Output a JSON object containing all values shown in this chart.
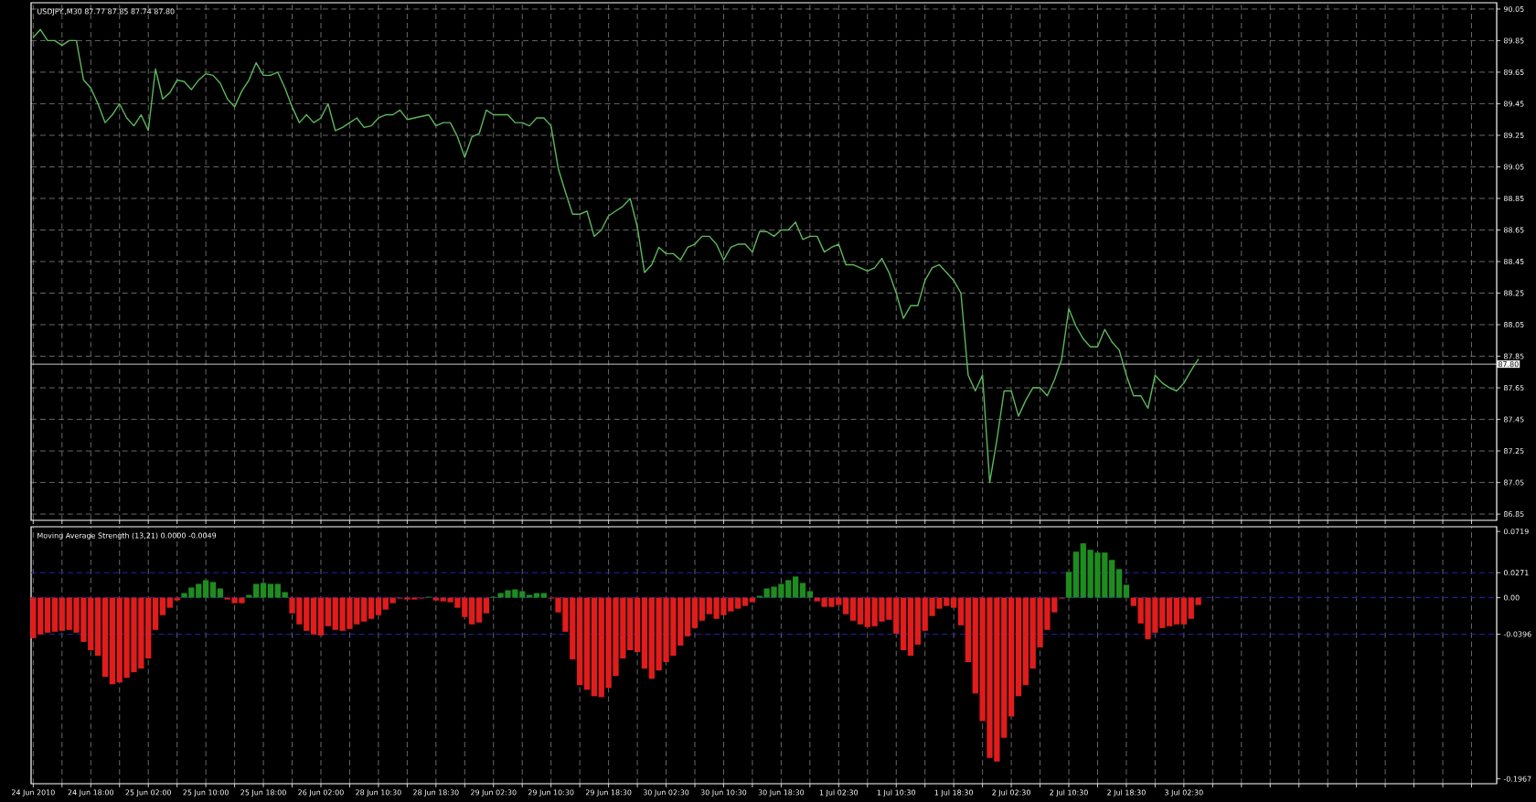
{
  "chart_data": [
    {
      "type": "line",
      "title": "USDJPY.,M30  87.77 87.85 87.74 87.80",
      "color": "#5cb85c",
      "ylim": [
        86.81,
        90.09
      ],
      "grid": true,
      "tick_labels": "y",
      "yticks": [
        90.05,
        89.85,
        89.65,
        89.45,
        89.25,
        89.05,
        88.85,
        88.65,
        88.45,
        88.25,
        88.05,
        87.85,
        87.65,
        87.45,
        87.25,
        87.05,
        86.85
      ],
      "ref_lines": [
        {
          "axis": "y",
          "value": 87.8,
          "label": "87.80",
          "color": "#c8c8c8",
          "line_style": "solid"
        }
      ],
      "categories": [
        null,
        null,
        null,
        null,
        null,
        null,
        null,
        null,
        null,
        null,
        null,
        null,
        null,
        null,
        null,
        null,
        null,
        null,
        null,
        null,
        null,
        null,
        null,
        null,
        null,
        null,
        null,
        null,
        null,
        null,
        null,
        null,
        null,
        null,
        null,
        null,
        null,
        null,
        null,
        null,
        null,
        null,
        null,
        null,
        null,
        null,
        null,
        null,
        null,
        null,
        null,
        null,
        null,
        null,
        null,
        null,
        null,
        null,
        null,
        null,
        null,
        null,
        null,
        null,
        null,
        null,
        null,
        null,
        null,
        null,
        null,
        null,
        null,
        null,
        null,
        null,
        null,
        null,
        null,
        null,
        null,
        null,
        null,
        null,
        null,
        null,
        null,
        null,
        null,
        null,
        null,
        null,
        null,
        null,
        null,
        null,
        null,
        null,
        null,
        null,
        null,
        null,
        null,
        null,
        null,
        null,
        null,
        null,
        null,
        null,
        null,
        null,
        null,
        null,
        null,
        null,
        null,
        null,
        null,
        null,
        null,
        null,
        null,
        null,
        null,
        null,
        null,
        null,
        null,
        null,
        null,
        null,
        null,
        null,
        null,
        null,
        null,
        null,
        null,
        null,
        null,
        null,
        null,
        null,
        null,
        null,
        null,
        null,
        null,
        null,
        null,
        null,
        null,
        null,
        null,
        null,
        null,
        null,
        null,
        null,
        null,
        null,
        null,
        null,
        null,
        null,
        null,
        null,
        null,
        null,
        null,
        null,
        null,
        null,
        null,
        null,
        null,
        null,
        null,
        null,
        null,
        null,
        null,
        null,
        null,
        null,
        null,
        null,
        null,
        null,
        null,
        null,
        null,
        null,
        null,
        null,
        null,
        null,
        null,
        null,
        null,
        null,
        null,
        null
      ],
      "values": [
        89.87,
        89.92,
        89.85,
        89.85,
        89.82,
        89.85,
        89.85,
        89.6,
        89.55,
        89.45,
        89.33,
        89.38,
        89.45,
        89.36,
        89.31,
        89.38,
        89.28,
        89.67,
        89.48,
        89.52,
        89.6,
        89.59,
        89.54,
        89.6,
        89.64,
        89.63,
        89.58,
        89.48,
        89.43,
        89.53,
        89.6,
        89.71,
        89.63,
        89.63,
        89.65,
        89.55,
        89.43,
        89.33,
        89.38,
        89.33,
        89.36,
        89.45,
        89.28,
        89.3,
        89.33,
        89.36,
        89.3,
        89.31,
        89.36,
        89.38,
        89.38,
        89.41,
        89.35,
        89.36,
        89.37,
        89.38,
        89.31,
        89.33,
        89.33,
        89.24,
        89.11,
        89.24,
        89.26,
        89.41,
        89.38,
        89.38,
        89.38,
        89.33,
        89.33,
        89.31,
        89.36,
        89.36,
        89.31,
        89.04,
        88.89,
        88.75,
        88.75,
        88.77,
        88.61,
        88.65,
        88.74,
        88.77,
        88.8,
        88.85,
        88.67,
        88.38,
        88.43,
        88.54,
        88.5,
        88.5,
        88.46,
        88.54,
        88.56,
        88.61,
        88.61,
        88.56,
        88.46,
        88.54,
        88.56,
        88.56,
        88.51,
        88.64,
        88.64,
        88.61,
        88.65,
        88.65,
        88.7,
        88.59,
        88.61,
        88.61,
        88.51,
        88.54,
        88.56,
        88.43,
        88.43,
        88.41,
        88.39,
        88.41,
        88.47,
        88.38,
        88.25,
        88.09,
        88.17,
        88.17,
        88.33,
        88.41,
        88.43,
        88.38,
        88.33,
        88.25,
        87.73,
        87.63,
        87.73,
        87.05,
        87.32,
        87.63,
        87.63,
        87.47,
        87.57,
        87.65,
        87.65,
        87.6,
        87.7,
        87.83,
        88.15,
        88.04,
        87.96,
        87.91,
        87.91,
        88.02,
        87.94,
        87.89,
        87.73,
        87.6,
        87.6,
        87.52,
        87.73,
        87.68,
        87.65,
        87.63,
        87.68,
        87.76,
        87.83,
        null,
        null,
        null,
        null,
        null,
        null,
        null,
        null,
        null,
        null,
        null,
        null,
        null,
        null,
        null,
        null,
        null,
        null,
        null,
        null,
        null,
        null,
        null,
        null,
        null,
        null,
        null,
        null,
        null,
        null,
        null,
        null,
        null,
        null,
        null,
        null,
        null,
        null,
        null,
        null,
        null
      ]
    },
    {
      "type": "bar",
      "title": "Moving Average Strength (13,21) 0.0000 -0.0049",
      "ylim": [
        -0.202,
        0.077
      ],
      "grid": "x",
      "yticks": [
        0.0719,
        0.0271,
        {
          "value": 0,
          "label": "0.00"
        },
        -0.0396,
        -0.1967
      ],
      "ref_lines": [
        {
          "axis": "y",
          "value": 0.0271,
          "color": "#2020b0",
          "line_style": "dashed"
        },
        {
          "axis": "y",
          "value": 0,
          "color": "#2020b0",
          "line_style": "dashed"
        },
        {
          "axis": "y",
          "value": -0.0396,
          "color": "#2020b0",
          "line_style": "dashed"
        }
      ],
      "categories": [
        "24 Jun 2010",
        null,
        null,
        null,
        null,
        null,
        null,
        null,
        "24 Jun 18:00",
        null,
        null,
        null,
        null,
        null,
        null,
        null,
        "25 Jun 02:00",
        null,
        null,
        null,
        null,
        null,
        null,
        null,
        "25 Jun 10:00",
        null,
        null,
        null,
        null,
        null,
        null,
        null,
        "25 Jun 18:00",
        null,
        null,
        null,
        null,
        null,
        null,
        null,
        "26 Jun 02:00",
        null,
        null,
        null,
        null,
        null,
        null,
        null,
        "28 Jun 10:30",
        null,
        null,
        null,
        null,
        null,
        null,
        null,
        "28 Jun 18:30",
        null,
        null,
        null,
        null,
        null,
        null,
        null,
        "29 Jun 02:30",
        null,
        null,
        null,
        null,
        null,
        null,
        null,
        "29 Jun 10:30",
        null,
        null,
        null,
        null,
        null,
        null,
        null,
        "29 Jun 18:30",
        null,
        null,
        null,
        null,
        null,
        null,
        null,
        "30 Jun 02:30",
        null,
        null,
        null,
        null,
        null,
        null,
        null,
        "30 Jun 10:30",
        null,
        null,
        null,
        null,
        null,
        null,
        null,
        "30 Jun 18:30",
        null,
        null,
        null,
        null,
        null,
        null,
        null,
        "1 Jul 02:30",
        null,
        null,
        null,
        null,
        null,
        null,
        null,
        "1 Jul 10:30",
        null,
        null,
        null,
        null,
        null,
        null,
        null,
        "1 Jul 18:30",
        null,
        null,
        null,
        null,
        null,
        null,
        null,
        "2 Jul 02:30",
        null,
        null,
        null,
        null,
        null,
        null,
        null,
        "2 Jul 10:30",
        null,
        null,
        null,
        null,
        null,
        null,
        null,
        "2 Jul 18:30",
        null,
        null,
        null,
        null,
        null,
        null,
        null,
        "3 Jul 02:30",
        null,
        null,
        null,
        null,
        null,
        null,
        null,
        null,
        null,
        null,
        null,
        null,
        null,
        null,
        null,
        null,
        null,
        null,
        null,
        null,
        null,
        null,
        null,
        null,
        null,
        null,
        null,
        null,
        null,
        null,
        null,
        null,
        null,
        null,
        null,
        null,
        null,
        null,
        null,
        null,
        null,
        null,
        null
      ],
      "values": [
        -0.044,
        -0.04,
        -0.038,
        -0.037,
        -0.036,
        -0.035,
        -0.038,
        -0.048,
        -0.057,
        -0.063,
        -0.086,
        -0.094,
        -0.092,
        -0.087,
        -0.081,
        -0.077,
        -0.066,
        -0.035,
        -0.019,
        -0.011,
        -0.003,
        0.005,
        0.011,
        0.015,
        0.019,
        0.017,
        0.01,
        -0.002,
        -0.006,
        -0.006,
        0.003,
        0.015,
        0.016,
        0.015,
        0.015,
        0.006,
        -0.017,
        -0.029,
        -0.036,
        -0.04,
        -0.041,
        -0.031,
        -0.035,
        -0.036,
        -0.034,
        -0.029,
        -0.026,
        -0.023,
        -0.019,
        -0.013,
        -0.006,
        -0.001,
        -0.002,
        -0.002,
        -0.001,
        0.001,
        -0.003,
        -0.004,
        -0.005,
        -0.011,
        -0.021,
        -0.029,
        -0.027,
        -0.017,
        0.001,
        0.005,
        0.008,
        0.009,
        0.007,
        0.003,
        0.005,
        0.005,
        -0.001,
        -0.016,
        -0.037,
        -0.067,
        -0.095,
        -0.1,
        -0.107,
        -0.108,
        -0.098,
        -0.085,
        -0.066,
        -0.057,
        -0.059,
        -0.077,
        -0.088,
        -0.079,
        -0.07,
        -0.063,
        -0.052,
        -0.042,
        -0.033,
        -0.025,
        -0.018,
        -0.023,
        -0.019,
        -0.015,
        -0.012,
        -0.009,
        -0.005,
        0.002,
        0.01,
        0.012,
        0.015,
        0.019,
        0.023,
        0.016,
        0.007,
        -0.004,
        -0.01,
        -0.01,
        -0.008,
        -0.018,
        -0.025,
        -0.029,
        -0.032,
        -0.031,
        -0.026,
        -0.024,
        -0.039,
        -0.057,
        -0.063,
        -0.051,
        -0.036,
        -0.02,
        -0.012,
        -0.009,
        -0.011,
        -0.03,
        -0.07,
        -0.104,
        -0.134,
        -0.174,
        -0.178,
        -0.152,
        -0.129,
        -0.107,
        -0.095,
        -0.077,
        -0.054,
        -0.035,
        -0.016,
        -0.001,
        0.028,
        0.05,
        0.059,
        0.052,
        0.049,
        0.049,
        0.041,
        0.031,
        0.014,
        -0.009,
        -0.028,
        -0.045,
        -0.038,
        -0.033,
        -0.031,
        -0.029,
        -0.029,
        -0.023,
        -0.008,
        null,
        null,
        null,
        null,
        null,
        null,
        null,
        null,
        null,
        null,
        null,
        null,
        null,
        null,
        null,
        null,
        null,
        null,
        null,
        null,
        null,
        null,
        null,
        null,
        null,
        null,
        null,
        null,
        null,
        null,
        null,
        null,
        null,
        null,
        null,
        null,
        null,
        null,
        null,
        null,
        null
      ],
      "colors": [
        "#e01c1c",
        "#e01c1c",
        "#e01c1c",
        "#e01c1c",
        "#e01c1c",
        "#e01c1c",
        "#e01c1c",
        "#e01c1c",
        "#e01c1c",
        "#e01c1c",
        "#e01c1c",
        "#e01c1c",
        "#e01c1c",
        "#e01c1c",
        "#e01c1c",
        "#e01c1c",
        "#e01c1c",
        "#e01c1c",
        "#e01c1c",
        "#e01c1c",
        "#e01c1c",
        "#1e8c1e",
        "#1e8c1e",
        "#1e8c1e",
        "#1e8c1e",
        "#1e8c1e",
        "#1e8c1e",
        "#e01c1c",
        "#e01c1c",
        "#e01c1c",
        "#1e8c1e",
        "#1e8c1e",
        "#1e8c1e",
        "#1e8c1e",
        "#1e8c1e",
        "#1e8c1e",
        "#e01c1c",
        "#e01c1c",
        "#e01c1c",
        "#e01c1c",
        "#e01c1c",
        "#e01c1c",
        "#e01c1c",
        "#e01c1c",
        "#e01c1c",
        "#e01c1c",
        "#e01c1c",
        "#e01c1c",
        "#e01c1c",
        "#e01c1c",
        "#e01c1c",
        "#e01c1c",
        "#e01c1c",
        "#e01c1c",
        "#e01c1c",
        "#1e8c1e",
        "#e01c1c",
        "#e01c1c",
        "#e01c1c",
        "#e01c1c",
        "#e01c1c",
        "#e01c1c",
        "#e01c1c",
        "#e01c1c",
        "#1e8c1e",
        "#1e8c1e",
        "#1e8c1e",
        "#1e8c1e",
        "#1e8c1e",
        "#1e8c1e",
        "#1e8c1e",
        "#1e8c1e",
        "#e01c1c",
        "#e01c1c",
        "#e01c1c",
        "#e01c1c",
        "#e01c1c",
        "#e01c1c",
        "#e01c1c",
        "#e01c1c",
        "#e01c1c",
        "#e01c1c",
        "#e01c1c",
        "#e01c1c",
        "#e01c1c",
        "#e01c1c",
        "#e01c1c",
        "#e01c1c",
        "#e01c1c",
        "#e01c1c",
        "#e01c1c",
        "#e01c1c",
        "#e01c1c",
        "#e01c1c",
        "#e01c1c",
        "#e01c1c",
        "#e01c1c",
        "#e01c1c",
        "#e01c1c",
        "#e01c1c",
        "#e01c1c",
        "#1e8c1e",
        "#1e8c1e",
        "#1e8c1e",
        "#1e8c1e",
        "#1e8c1e",
        "#1e8c1e",
        "#1e8c1e",
        "#1e8c1e",
        "#e01c1c",
        "#e01c1c",
        "#e01c1c",
        "#e01c1c",
        "#e01c1c",
        "#e01c1c",
        "#e01c1c",
        "#e01c1c",
        "#e01c1c",
        "#e01c1c",
        "#e01c1c",
        "#e01c1c",
        "#e01c1c",
        "#e01c1c",
        "#e01c1c",
        "#e01c1c",
        "#e01c1c",
        "#e01c1c",
        "#e01c1c",
        "#e01c1c",
        "#e01c1c",
        "#e01c1c",
        "#e01c1c",
        "#e01c1c",
        "#e01c1c",
        "#e01c1c",
        "#e01c1c",
        "#e01c1c",
        "#e01c1c",
        "#e01c1c",
        "#e01c1c",
        "#e01c1c",
        "#e01c1c",
        "#e01c1c",
        "#e01c1c",
        "#1e8c1e",
        "#1e8c1e",
        "#1e8c1e",
        "#1e8c1e",
        "#1e8c1e",
        "#1e8c1e",
        "#1e8c1e",
        "#1e8c1e",
        "#1e8c1e",
        "#e01c1c",
        "#e01c1c",
        "#e01c1c",
        "#e01c1c",
        "#e01c1c",
        "#e01c1c",
        "#e01c1c",
        "#e01c1c",
        "#e01c1c",
        "#e01c1c",
        null,
        null,
        null,
        null,
        null,
        null,
        null,
        null,
        null,
        null,
        null,
        null,
        null,
        null,
        null,
        null,
        null,
        null,
        null,
        null,
        null,
        null,
        null,
        null,
        null,
        null,
        null,
        null,
        null,
        null,
        null,
        null,
        null,
        null,
        null,
        null,
        null,
        null,
        null,
        null,
        null
      ]
    }
  ]
}
